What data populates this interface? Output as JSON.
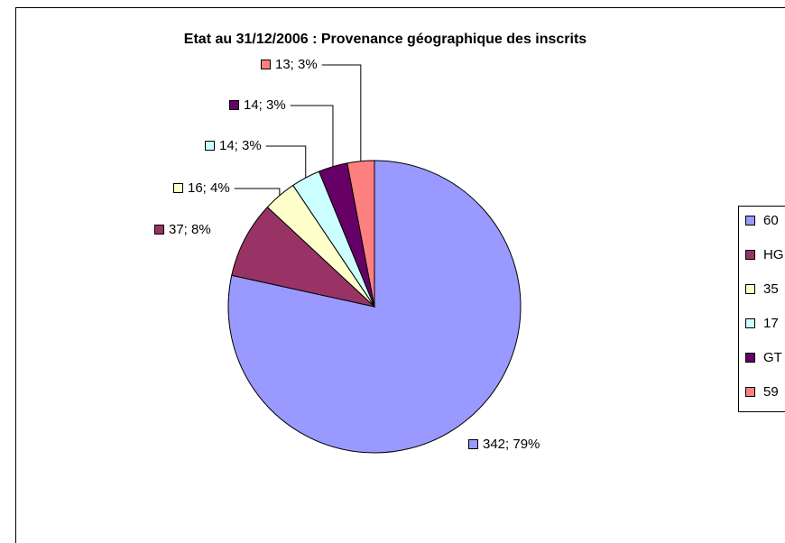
{
  "chart_data": {
    "type": "pie",
    "title": "Etat au 31/12/2006 : Provenance géographique des inscrits",
    "categories": [
      "60",
      "HG",
      "35",
      "17",
      "GT",
      "59"
    ],
    "values": [
      342,
      37,
      16,
      14,
      14,
      13
    ],
    "value_labels": [
      "342; 79%",
      "37; 8%",
      "16; 4%",
      "14; 3%",
      "14; 3%",
      "13; 3%"
    ],
    "colors": [
      "#9999ff",
      "#993366",
      "#ffffcc",
      "#ccffff",
      "#660066",
      "#ff8080"
    ],
    "legend": "right"
  }
}
